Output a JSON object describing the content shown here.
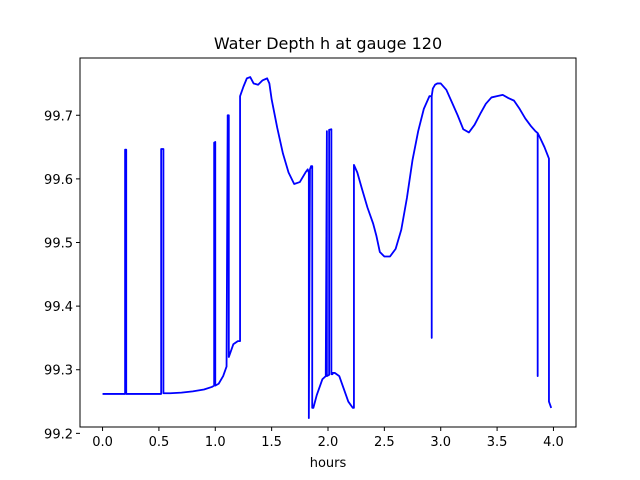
{
  "chart_data": {
    "type": "line",
    "title": "Water Depth h at gauge 120",
    "xlabel": "hours",
    "ylabel": "",
    "xlim": [
      -0.2,
      4.2
    ],
    "ylim": [
      99.21,
      99.79
    ],
    "x_ticks": [
      0.0,
      0.5,
      1.0,
      1.5,
      2.0,
      2.5,
      3.0,
      3.5,
      4.0
    ],
    "x_tick_labels": [
      "0.0",
      "0.5",
      "1.0",
      "1.5",
      "2.0",
      "2.5",
      "3.0",
      "3.5",
      "4.0"
    ],
    "y_ticks": [
      99.2,
      99.3,
      99.4,
      99.5,
      99.6,
      99.7
    ],
    "y_tick_labels": [
      "99.2",
      "99.3",
      "99.4",
      "99.5",
      "99.6",
      "99.7"
    ],
    "grid": false,
    "series": [
      {
        "color": "#0000ff",
        "x": [
          0.0,
          0.2,
          0.2,
          0.21,
          0.21,
          0.21,
          0.25,
          0.52,
          0.52,
          0.54,
          0.54,
          0.54,
          0.6,
          0.7,
          0.8,
          0.9,
          0.97,
          0.99,
          0.99,
          1.0,
          1.0,
          1.03,
          1.07,
          1.1,
          1.11,
          1.11,
          1.12,
          1.12,
          1.14,
          1.16,
          1.2,
          1.22,
          1.22,
          1.25,
          1.28,
          1.31,
          1.34,
          1.38,
          1.42,
          1.46,
          1.48,
          1.5,
          1.55,
          1.6,
          1.65,
          1.7,
          1.75,
          1.8,
          1.82,
          1.83,
          1.83,
          1.84,
          1.85,
          1.86,
          1.86,
          1.87,
          1.87,
          1.9,
          1.95,
          1.98,
          1.99,
          1.99,
          2.01,
          2.01,
          2.03,
          2.03,
          2.04,
          2.04,
          2.06,
          2.1,
          2.14,
          2.18,
          2.22,
          2.23,
          2.23,
          2.26,
          2.3,
          2.35,
          2.4,
          2.43,
          2.46,
          2.5,
          2.55,
          2.6,
          2.65,
          2.7,
          2.75,
          2.8,
          2.85,
          2.9,
          2.92,
          2.92,
          2.92,
          2.93,
          2.95,
          2.97,
          3.0,
          3.05,
          3.1,
          3.15,
          3.2,
          3.25,
          3.3,
          3.35,
          3.4,
          3.45,
          3.5,
          3.55,
          3.6,
          3.65,
          3.7,
          3.75,
          3.8,
          3.84,
          3.86,
          3.86,
          3.86,
          3.88,
          3.92,
          3.96,
          3.96,
          3.98
        ],
        "y": [
          99.262,
          99.262,
          99.646,
          99.646,
          99.646,
          99.262,
          99.262,
          99.262,
          99.647,
          99.647,
          99.647,
          99.263,
          99.263,
          99.264,
          99.266,
          99.269,
          99.273,
          99.275,
          99.657,
          99.658,
          99.275,
          99.278,
          99.29,
          99.305,
          99.69,
          99.7,
          99.7,
          99.32,
          99.33,
          99.34,
          99.345,
          99.345,
          99.73,
          99.745,
          99.758,
          99.76,
          99.75,
          99.748,
          99.755,
          99.758,
          99.75,
          99.725,
          99.68,
          99.64,
          99.61,
          99.592,
          99.595,
          99.61,
          99.615,
          99.61,
          99.224,
          99.615,
          99.62,
          99.62,
          99.24,
          99.24,
          99.24,
          99.26,
          99.285,
          99.29,
          99.675,
          99.29,
          99.292,
          99.677,
          99.678,
          99.293,
          99.293,
          99.295,
          99.295,
          99.29,
          99.27,
          99.25,
          99.24,
          99.24,
          99.622,
          99.61,
          99.585,
          99.555,
          99.53,
          99.51,
          99.485,
          99.478,
          99.478,
          99.49,
          99.52,
          99.57,
          99.63,
          99.675,
          99.71,
          99.73,
          99.73,
          99.35,
          99.73,
          99.742,
          99.748,
          99.75,
          99.75,
          99.74,
          99.72,
          99.7,
          99.678,
          99.673,
          99.685,
          99.702,
          99.718,
          99.728,
          99.73,
          99.732,
          99.727,
          99.723,
          99.71,
          99.695,
          99.683,
          99.675,
          99.672,
          99.29,
          99.672,
          99.665,
          99.65,
          99.632,
          99.25,
          99.24
        ]
      }
    ]
  }
}
